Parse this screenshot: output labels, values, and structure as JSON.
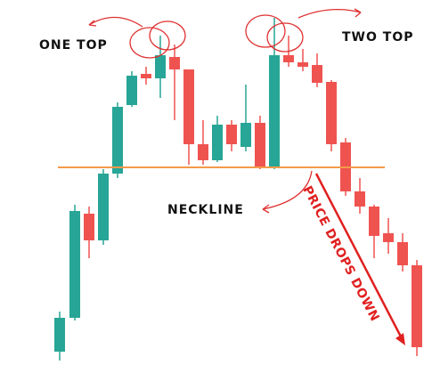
{
  "annotations": {
    "one_top": "ONE TOP",
    "two_top": "TWO TOP",
    "neckline": "NECKLINE",
    "price_drops": "PRICE DROPS DOWN"
  }
}
